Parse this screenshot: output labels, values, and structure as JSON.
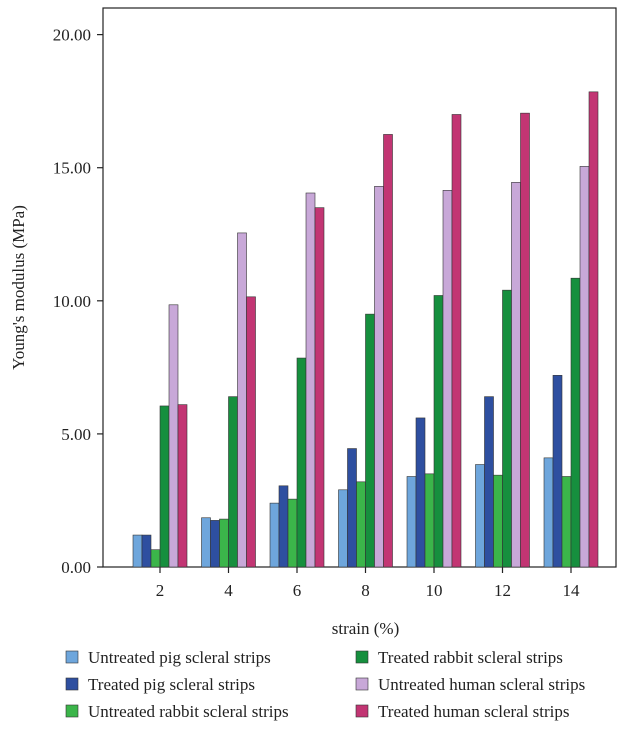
{
  "chart_data": {
    "type": "bar",
    "xlabel": "strain (%)",
    "ylabel": "Young's modulus (MPa)",
    "ylim": [
      0,
      21
    ],
    "yticks": [
      "0.00",
      "5.00",
      "10.00",
      "15.00",
      "20.00"
    ],
    "ytick_values": [
      0,
      5,
      10,
      15,
      20
    ],
    "categories": [
      "2",
      "4",
      "6",
      "8",
      "10",
      "12",
      "14"
    ],
    "grid": false,
    "legend_position": "bottom",
    "series": [
      {
        "name": "Untreated pig scleral strips",
        "color": "#6ea6dc",
        "values": [
          1.2,
          1.85,
          2.4,
          2.9,
          3.4,
          3.85,
          4.1
        ]
      },
      {
        "name": "Treated pig scleral strips",
        "color": "#2e4fa0",
        "values": [
          1.2,
          1.75,
          3.05,
          4.45,
          5.6,
          6.4,
          7.2
        ]
      },
      {
        "name": "Untreated rabbit scleral strips",
        "color": "#3bb54a",
        "values": [
          0.65,
          1.8,
          2.55,
          3.2,
          3.5,
          3.45,
          3.4
        ]
      },
      {
        "name": "Treated rabbit scleral strips",
        "color": "#168f3e",
        "values": [
          6.05,
          6.4,
          7.85,
          9.5,
          10.2,
          10.4,
          10.85
        ]
      },
      {
        "name": "Untreated human scleral strips",
        "color": "#c8a8d8",
        "values": [
          9.85,
          12.55,
          14.05,
          14.3,
          14.15,
          14.45,
          15.05
        ]
      },
      {
        "name": "Treated human scleral strips",
        "color": "#c23573",
        "values": [
          6.1,
          10.15,
          13.5,
          16.25,
          17.0,
          17.05,
          17.85
        ]
      }
    ]
  }
}
